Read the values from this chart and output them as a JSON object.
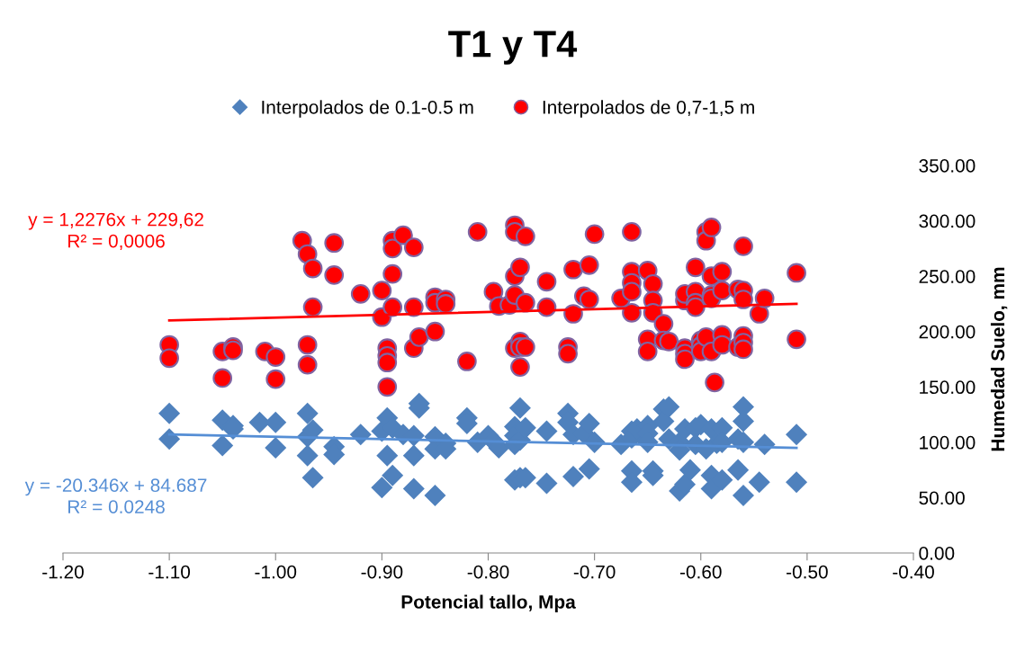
{
  "chart_data": {
    "type": "scatter",
    "title": "T1 y T4",
    "xlabel": "Potencial tallo, Mpa",
    "ylabel": "Humedad Suelo, mm",
    "xlim": [
      -1.2,
      -0.4
    ],
    "xticks": [
      {
        "value": -1.2,
        "label": "-1.20"
      },
      {
        "value": -1.1,
        "label": "-1.10"
      },
      {
        "value": -1.0,
        "label": "-1.00"
      },
      {
        "value": -0.9,
        "label": "-0.90"
      },
      {
        "value": -0.8,
        "label": "-0.80"
      },
      {
        "value": -0.7,
        "label": "-0.70"
      },
      {
        "value": -0.6,
        "label": "-0.60"
      },
      {
        "value": -0.5,
        "label": "-0.50"
      },
      {
        "value": -0.4,
        "label": "-0.40"
      }
    ],
    "ylim": [
      0,
      350
    ],
    "yticks": [
      {
        "value": 0,
        "label": "0.00"
      },
      {
        "value": 50,
        "label": "50.00"
      },
      {
        "value": 100,
        "label": "100.00"
      },
      {
        "value": 150,
        "label": "150.00"
      },
      {
        "value": 200,
        "label": "200.00"
      },
      {
        "value": 250,
        "label": "250.00"
      },
      {
        "value": 300,
        "label": "300.00"
      },
      {
        "value": 350,
        "label": "350.00"
      }
    ],
    "grid": false,
    "legend": "top",
    "annotations": [
      "y = 1,2276x + 229,62\nR² = 0,0006",
      "y = -20.346x + 84.687\nR² = 0.0248"
    ],
    "series": [
      {
        "name": "Interpolados de 0.1-0.5 m",
        "marker": "diamond",
        "color": "#4f81bd",
        "x": [
          -1.1,
          -1.1,
          -1.05,
          -1.05,
          -1.04,
          -1.04,
          -1.015,
          -1.0,
          -1.0,
          -0.97,
          -0.97,
          -0.97,
          -0.965,
          -0.965,
          -0.945,
          -0.945,
          -0.92,
          -0.9,
          -0.9,
          -0.895,
          -0.895,
          -0.89,
          -0.89,
          -0.88,
          -0.87,
          -0.87,
          -0.87,
          -0.865,
          -0.865,
          -0.85,
          -0.85,
          -0.85,
          -0.84,
          -0.84,
          -0.82,
          -0.82,
          -0.81,
          -0.8,
          -0.795,
          -0.79,
          -0.775,
          -0.775,
          -0.775,
          -0.775,
          -0.77,
          -0.77,
          -0.77,
          -0.765,
          -0.765,
          -0.745,
          -0.745,
          -0.725,
          -0.725,
          -0.72,
          -0.72,
          -0.71,
          -0.705,
          -0.705,
          -0.7,
          -0.675,
          -0.665,
          -0.665,
          -0.665,
          -0.665,
          -0.66,
          -0.65,
          -0.65,
          -0.65,
          -0.645,
          -0.645,
          -0.635,
          -0.635,
          -0.63,
          -0.63,
          -0.62,
          -0.62,
          -0.62,
          -0.615,
          -0.615,
          -0.61,
          -0.605,
          -0.605,
          -0.6,
          -0.595,
          -0.59,
          -0.59,
          -0.59,
          -0.585,
          -0.58,
          -0.58,
          -0.58,
          -0.565,
          -0.565,
          -0.56,
          -0.56,
          -0.56,
          -0.56,
          -0.545,
          -0.54,
          -0.51,
          -0.51
        ],
        "values": [
          126,
          103,
          120,
          97,
          115,
          112,
          118,
          118,
          95,
          126,
          105,
          88,
          111,
          68,
          96,
          89,
          107,
          110,
          59,
          122,
          88,
          113,
          70,
          107,
          106,
          88,
          58,
          135,
          131,
          105,
          94,
          52,
          99,
          94,
          122,
          117,
          100,
          106,
          101,
          95,
          114,
          106,
          98,
          66,
          131,
          102,
          68,
          113,
          68,
          110,
          63,
          126,
          118,
          107,
          69,
          108,
          117,
          76,
          100,
          98,
          110,
          104,
          74,
          64,
          112,
          115,
          108,
          100,
          74,
          70,
          130,
          119,
          132,
          103,
          100,
          93,
          56,
          112,
          62,
          75,
          113,
          98,
          116,
          94,
          112,
          70,
          58,
          99,
          113,
          100,
          66,
          103,
          75,
          132,
          119,
          100,
          52,
          64,
          98,
          107,
          64
        ]
      },
      {
        "name": "Interpolados de 0,7-1,5 m",
        "marker": "circle",
        "color": "#ff0000",
        "x": [
          -1.1,
          -1.1,
          -1.05,
          -1.05,
          -1.04,
          -1.04,
          -1.01,
          -1.0,
          -1.0,
          -0.975,
          -0.97,
          -0.97,
          -0.97,
          -0.965,
          -0.965,
          -0.945,
          -0.945,
          -0.92,
          -0.9,
          -0.9,
          -0.895,
          -0.895,
          -0.895,
          -0.895,
          -0.89,
          -0.89,
          -0.89,
          -0.89,
          -0.88,
          -0.87,
          -0.87,
          -0.87,
          -0.865,
          -0.85,
          -0.85,
          -0.85,
          -0.84,
          -0.84,
          -0.82,
          -0.81,
          -0.795,
          -0.79,
          -0.78,
          -0.775,
          -0.775,
          -0.775,
          -0.775,
          -0.775,
          -0.77,
          -0.77,
          -0.77,
          -0.77,
          -0.765,
          -0.765,
          -0.765,
          -0.745,
          -0.745,
          -0.725,
          -0.725,
          -0.72,
          -0.72,
          -0.71,
          -0.705,
          -0.705,
          -0.7,
          -0.675,
          -0.665,
          -0.665,
          -0.665,
          -0.665,
          -0.665,
          -0.65,
          -0.65,
          -0.65,
          -0.645,
          -0.645,
          -0.645,
          -0.635,
          -0.635,
          -0.63,
          -0.615,
          -0.615,
          -0.615,
          -0.615,
          -0.615,
          -0.605,
          -0.605,
          -0.605,
          -0.605,
          -0.6,
          -0.6,
          -0.6,
          -0.595,
          -0.595,
          -0.595,
          -0.59,
          -0.59,
          -0.59,
          -0.59,
          -0.59,
          -0.587,
          -0.58,
          -0.58,
          -0.58,
          -0.58,
          -0.565,
          -0.565,
          -0.56,
          -0.56,
          -0.56,
          -0.56,
          -0.56,
          -0.56,
          -0.545,
          -0.54,
          -0.51,
          -0.51
        ],
        "values": [
          188,
          176,
          182,
          158,
          186,
          183,
          182,
          177,
          157,
          282,
          270,
          188,
          170,
          257,
          222,
          280,
          251,
          234,
          237,
          213,
          185,
          178,
          172,
          150,
          282,
          275,
          252,
          222,
          287,
          276,
          222,
          185,
          195,
          231,
          226,
          200,
          229,
          225,
          173,
          290,
          236,
          223,
          224,
          296,
          290,
          250,
          233,
          185,
          258,
          191,
          186,
          168,
          286,
          226,
          186,
          245,
          222,
          186,
          180,
          256,
          216,
          232,
          260,
          229,
          288,
          230,
          290,
          254,
          244,
          236,
          217,
          255,
          193,
          182,
          243,
          228,
          217,
          207,
          192,
          191,
          228,
          234,
          185,
          180,
          175,
          258,
          236,
          226,
          222,
          192,
          187,
          182,
          290,
          282,
          195,
          294,
          250,
          233,
          230,
          182,
          154,
          254,
          237,
          197,
          188,
          238,
          186,
          277,
          237,
          229,
          196,
          190,
          184,
          216,
          230,
          253,
          193
        ]
      },
      {
        "type": "line",
        "marker": "none",
        "color": "#ff0000",
        "x": [
          -1.1,
          -0.51
        ],
        "values": [
          210,
          225
        ]
      },
      {
        "type": "line",
        "marker": "none",
        "color": "#558ed5",
        "x": [
          -1.1,
          -0.51
        ],
        "values": [
          107,
          95
        ]
      }
    ]
  }
}
